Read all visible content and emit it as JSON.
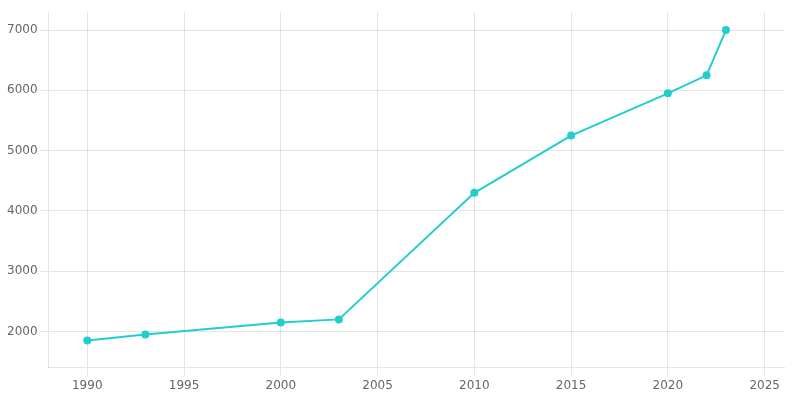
{
  "chart_data": {
    "type": "line",
    "x": [
      1990,
      1993,
      2000,
      2003,
      2010,
      2015,
      2020,
      2022,
      2023
    ],
    "values": [
      1850,
      1950,
      2150,
      2200,
      4300,
      5250,
      5950,
      6250,
      7000
    ],
    "color": "#22CDD0",
    "marker": "circle",
    "xlim": [
      1988,
      2026
    ],
    "ylim": [
      1400,
      7300
    ],
    "xticks": [
      1990,
      1995,
      2000,
      2005,
      2010,
      2015,
      2020,
      2025
    ],
    "yticks": [
      2000,
      3000,
      4000,
      5000,
      6000,
      7000
    ],
    "grid": true
  }
}
